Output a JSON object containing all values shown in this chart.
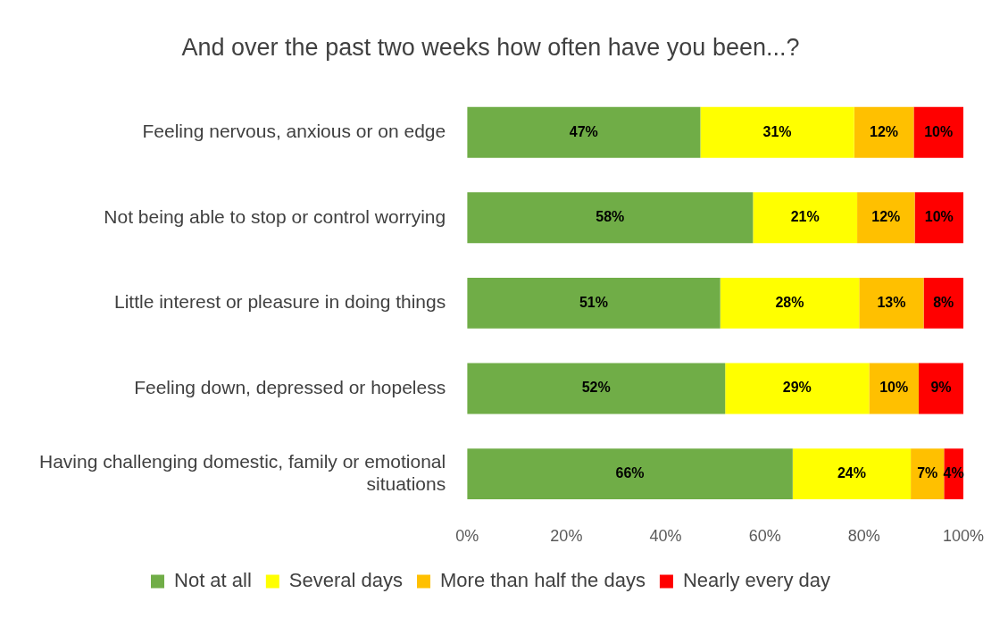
{
  "chart_data": {
    "type": "bar",
    "orientation": "horizontal",
    "stacked": true,
    "title": "And over the past two weeks how often have you been...?",
    "categories": [
      "Feeling nervous, anxious or on edge",
      "Not being able to stop or control worrying",
      "Little interest or pleasure in doing things",
      "Feeling down, depressed or hopeless",
      "Having challenging domestic, family or emotional situations"
    ],
    "series": [
      {
        "name": "Not at all",
        "color": "#70ad47",
        "values": [
          47,
          57.6,
          51,
          52,
          65.6
        ],
        "value_labels": [
          "47%",
          "58%",
          "51%",
          "52%",
          "66%"
        ]
      },
      {
        "name": "Several days",
        "color": "#ffff00",
        "values": [
          31,
          21,
          28,
          29,
          23.8
        ],
        "value_labels": [
          "31%",
          "21%",
          "28%",
          "29%",
          "24%"
        ]
      },
      {
        "name": "More than half the days",
        "color": "#ffc000",
        "values": [
          12,
          11.6,
          13,
          10,
          6.7
        ],
        "value_labels": [
          "12%",
          "12%",
          "13%",
          "10%",
          "7%"
        ]
      },
      {
        "name": "Nearly every day",
        "color": "#ff0000",
        "values": [
          10,
          9.8,
          8,
          9,
          3.9
        ],
        "value_labels": [
          "10%",
          "10%",
          "8%",
          "9%",
          "4%"
        ]
      }
    ],
    "xlim": [
      0,
      100
    ],
    "xticks": [
      {
        "value": 0,
        "label": "0%"
      },
      {
        "value": 20,
        "label": "20%"
      },
      {
        "value": 40,
        "label": "40%"
      },
      {
        "value": 60,
        "label": "60%"
      },
      {
        "value": 80,
        "label": "80%"
      },
      {
        "value": 100,
        "label": "100%"
      }
    ],
    "grid": false,
    "legend": "bottom"
  }
}
